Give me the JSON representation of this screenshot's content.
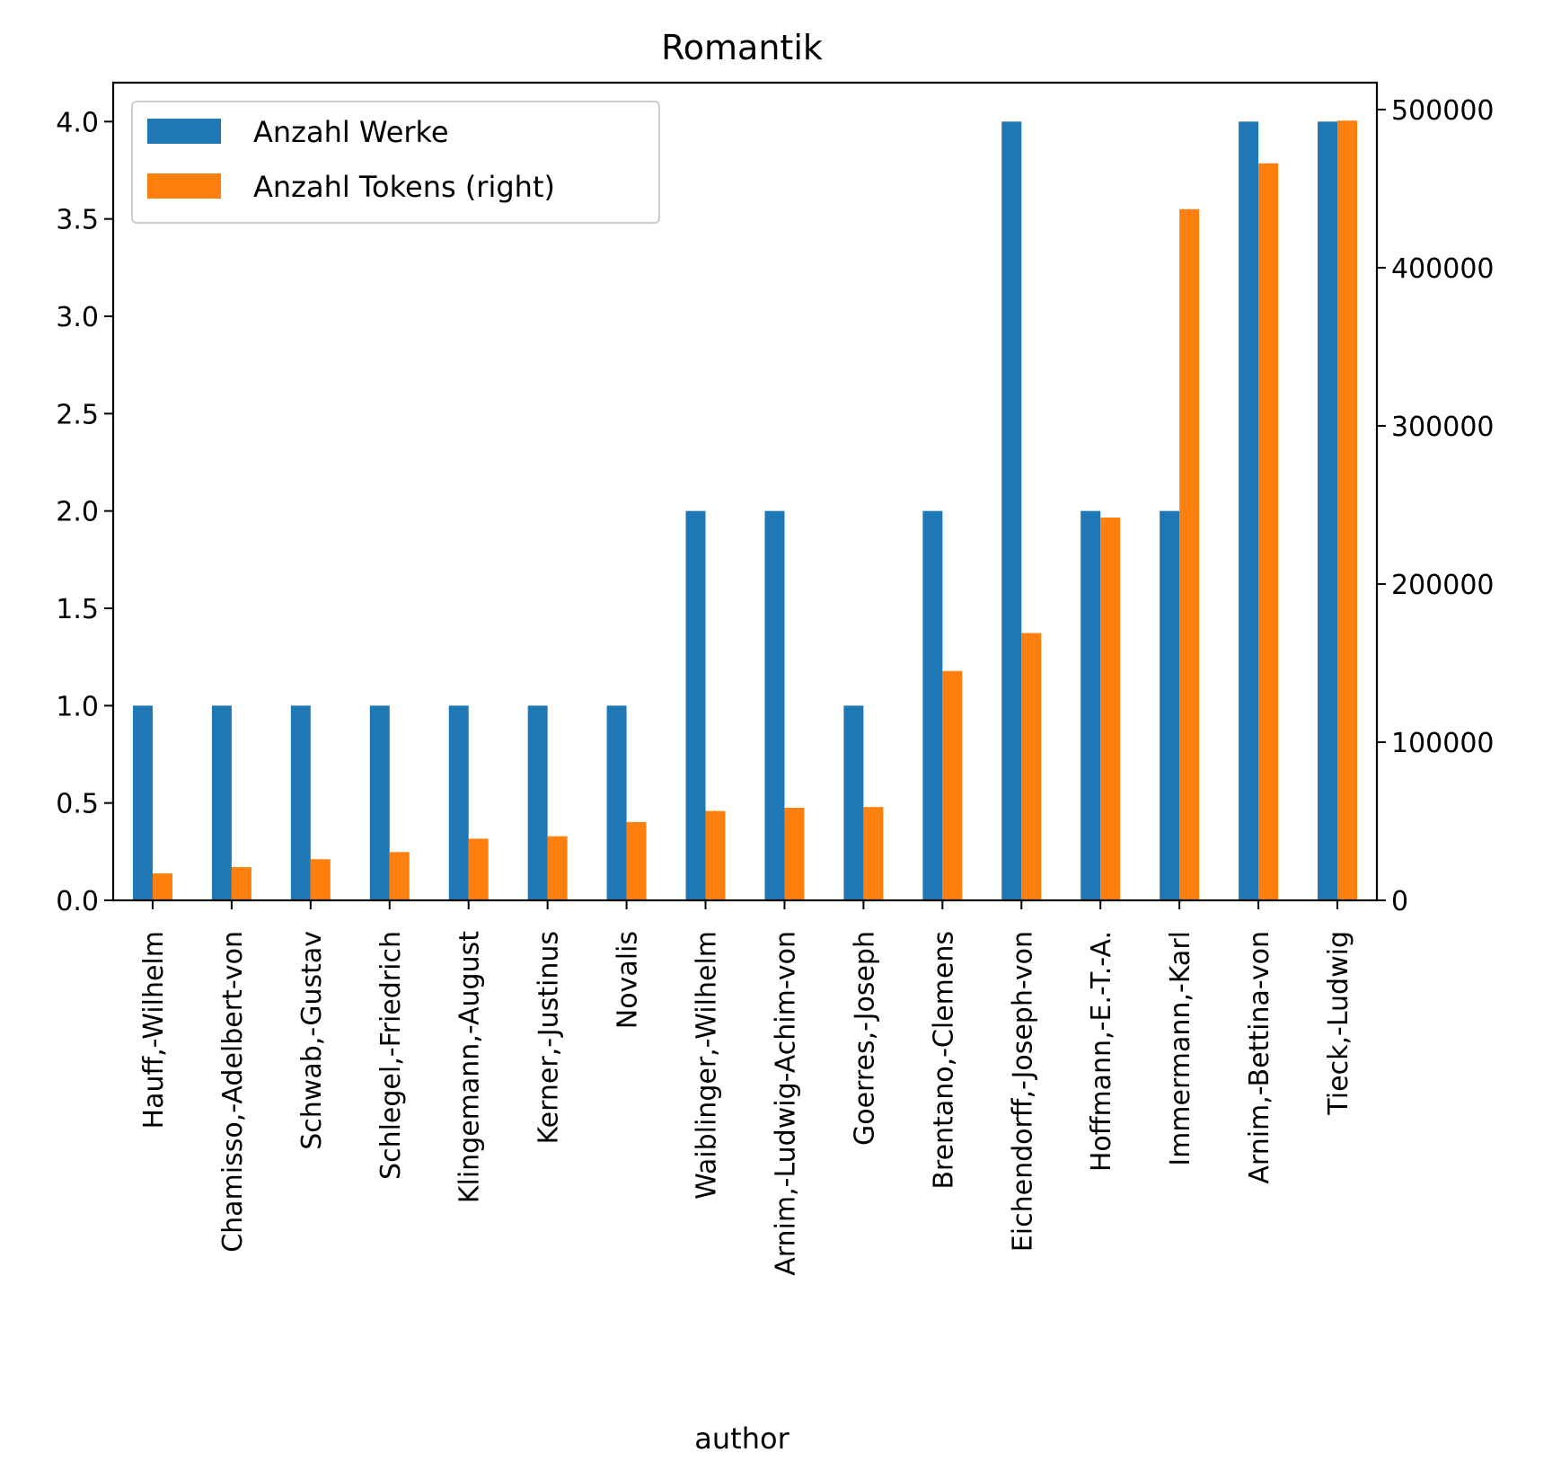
{
  "chart_data": {
    "type": "bar",
    "title": "Romantik",
    "xlabel": "author",
    "ylabel": "",
    "ylabel_right": "",
    "categories": [
      "Hauff,-Wilhelm",
      "Chamisso,-Adelbert-von",
      "Schwab,-Gustav",
      "Schlegel,-Friedrich",
      "Klingemann,-August",
      "Kerner,-Justinus",
      "Novalis",
      "Waiblinger,-Wilhelm",
      "Arnim,-Ludwig-Achim-von",
      "Goerres,-Joseph",
      "Brentano,-Clemens",
      "Eichendorff,-Joseph-von",
      "Hoffmann,-E.-T.-A.",
      "Immermann,-Karl",
      "Arnim,-Bettina-von",
      "Tieck,-Ludwig"
    ],
    "series": [
      {
        "name": "Anzahl Werke",
        "axis": "left",
        "color": "#1f77b4",
        "values": [
          1,
          1,
          1,
          1,
          1,
          1,
          1,
          2,
          2,
          1,
          2,
          4,
          2,
          2,
          4,
          4
        ]
      },
      {
        "name": "Anzahl Tokens (right)",
        "axis": "right",
        "color": "#ff7f0e",
        "values": [
          17000,
          21000,
          26000,
          30500,
          39000,
          40500,
          49500,
          56500,
          58500,
          59000,
          145000,
          169000,
          242000,
          437000,
          466000,
          493000
        ]
      }
    ],
    "ylim": [
      0,
      4.2
    ],
    "ylim_right": [
      0,
      517000
    ],
    "yticks": [
      "0.0",
      "0.5",
      "1.0",
      "1.5",
      "2.0",
      "2.5",
      "3.0",
      "3.5",
      "4.0"
    ],
    "yticks_right": [
      "0",
      "100000",
      "200000",
      "300000",
      "400000",
      "500000"
    ],
    "legend_position": "top-left",
    "grid": false
  }
}
